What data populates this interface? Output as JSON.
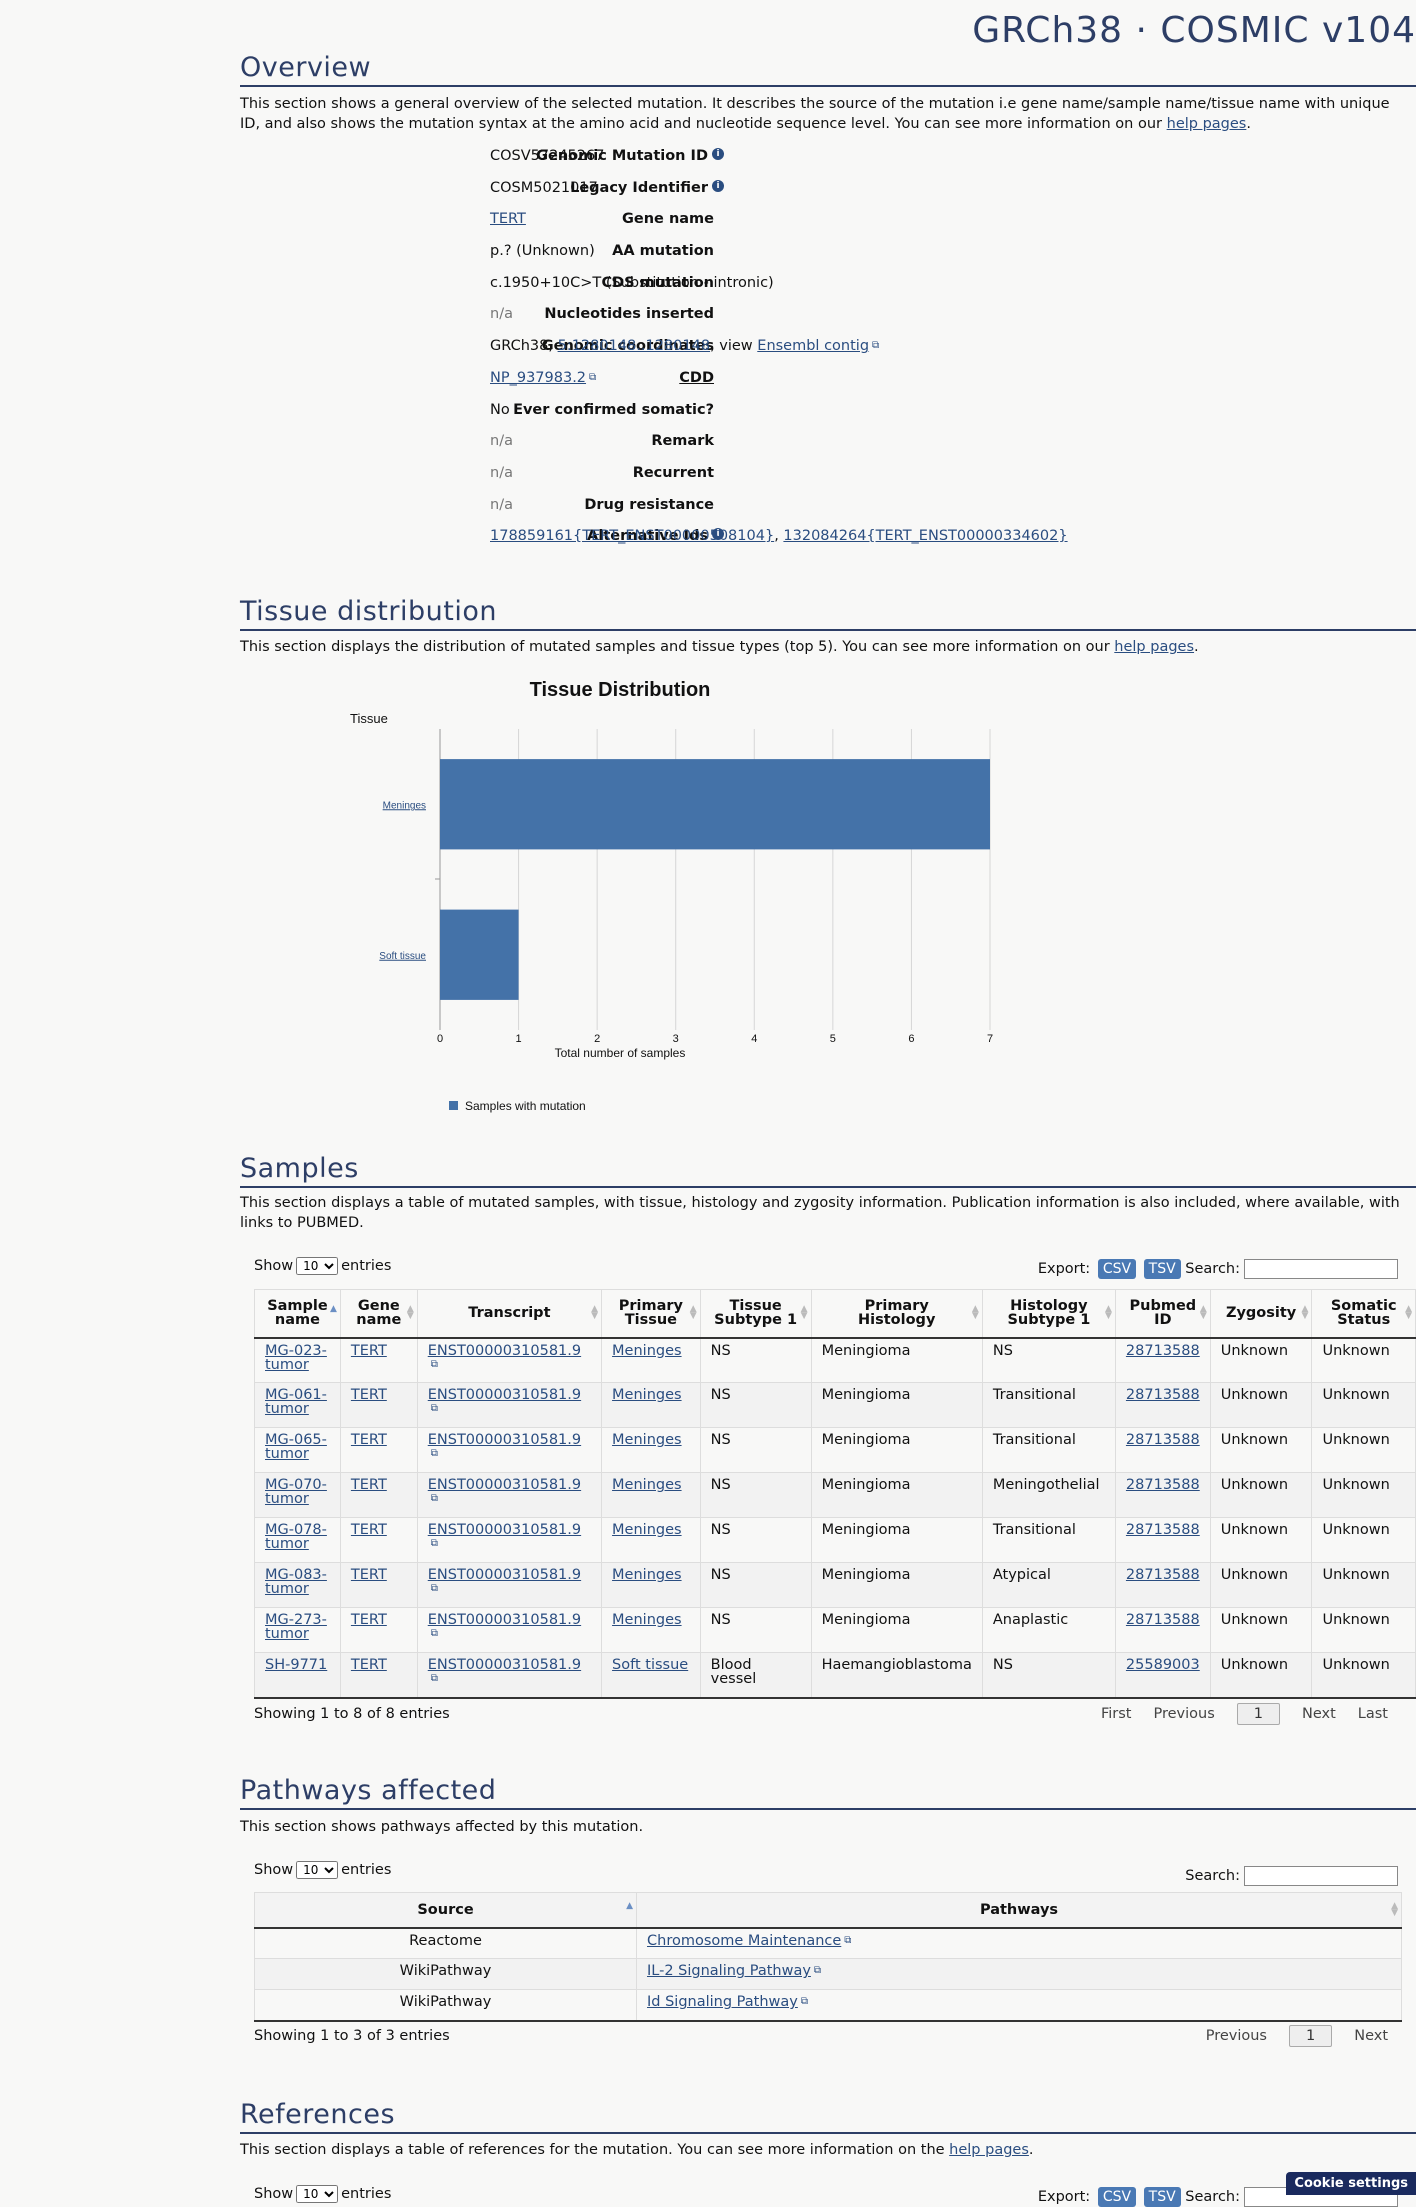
{
  "banner": "GRCh38 · COSMIC v104",
  "overview": {
    "title": "Overview",
    "desc_before": "This section shows a general overview of the selected mutation. It describes the source of the mutation i.e gene name/sample name/tissue name with unique ID, and also shows the mutation syntax at the amino acid and nucleotide sequence level. You can see more information on our ",
    "desc_link": "help pages",
    "desc_after": ".",
    "fields": {
      "genomic_mutation_id": {
        "label": "Genomic Mutation ID",
        "value": "COSV57245267"
      },
      "legacy_identifier": {
        "label": "Legacy Identifier",
        "value": "COSM5021017"
      },
      "gene_name": {
        "label": "Gene name",
        "value": "TERT"
      },
      "aa_mutation": {
        "label": "AA mutation",
        "value": "p.? (Unknown)"
      },
      "cds_mutation": {
        "label": "CDS mutation",
        "value": "c.1950+10C>T (Substitution - intronic)"
      },
      "nucleotides_inserted": {
        "label": "Nucleotides inserted",
        "value": "n/a"
      },
      "genomic_coordinates": {
        "label": "Genomic coordinates",
        "prefix": "GRCh38, ",
        "coord_link": "5:1280148..1280148",
        "mid": ", view ",
        "ensembl_link": "Ensembl contig"
      },
      "cdd": {
        "label": "CDD",
        "value": "NP_937983.2"
      },
      "ever_confirmed_somatic": {
        "label": "Ever confirmed somatic?",
        "value": "No"
      },
      "remark": {
        "label": "Remark",
        "value": "n/a"
      },
      "recurrent": {
        "label": "Recurrent",
        "value": "n/a"
      },
      "drug_resistance": {
        "label": "Drug resistance",
        "value": "n/a"
      },
      "alternative_ids": {
        "label": "Alternative Ids",
        "link1": "178859161{TERT_ENST00000508104}",
        "sep": ", ",
        "link2": "132084264{TERT_ENST00000334602}"
      }
    }
  },
  "tissue": {
    "title": "Tissue distribution",
    "desc_before": "This section displays the distribution of mutated samples and tissue types (top 5). You can see more information on our ",
    "desc_link": "help pages",
    "desc_after": "."
  },
  "chart_data": {
    "type": "bar",
    "orientation": "horizontal",
    "title": "Tissue Distribution",
    "ylabel": "Tissue",
    "xlabel": "Total number of samples",
    "categories": [
      "Meninges",
      "Soft tissue"
    ],
    "series": [
      {
        "name": "Samples with mutation",
        "values": [
          7,
          1
        ],
        "color": "#4472a8"
      }
    ],
    "xlim": [
      0,
      7
    ],
    "xticks": [
      "0",
      "1",
      "2",
      "3",
      "4",
      "5",
      "6",
      "7"
    ],
    "grid": true,
    "legend": "bottom"
  },
  "samples": {
    "title": "Samples",
    "desc": "This section displays a table of mutated samples, with tissue, histology and zygosity information. Publication information is also included, where available, with links to PUBMED.",
    "show": "Show",
    "entries": "entries",
    "page_size": "10",
    "export": "Export:",
    "csv": "CSV",
    "tsv": "TSV",
    "search": "Search:",
    "columns": [
      {
        "l1": "Sample",
        "l2": "name"
      },
      {
        "l1": "Gene",
        "l2": "name"
      },
      {
        "l1": "Transcript",
        "l2": ""
      },
      {
        "l1": "Primary",
        "l2": "Tissue"
      },
      {
        "l1": "Tissue",
        "l2": "Subtype 1"
      },
      {
        "l1": "Primary",
        "l2": "Histology"
      },
      {
        "l1": "Histology",
        "l2": "Subtype 1"
      },
      {
        "l1": "Pubmed",
        "l2": "ID"
      },
      {
        "l1": "Zygosity",
        "l2": ""
      },
      {
        "l1": "Somatic",
        "l2": "Status"
      }
    ],
    "rows": [
      {
        "s1": "MG-023-",
        "s2": "tumor",
        "gene": "TERT",
        "transcript": "ENST00000310581.9",
        "tissue": "Meninges",
        "subtype": "NS",
        "histology": "Meningioma",
        "hsub": "NS",
        "pubmed": "28713588",
        "zyg": "Unknown",
        "status": "Unknown"
      },
      {
        "s1": "MG-061-",
        "s2": "tumor",
        "gene": "TERT",
        "transcript": "ENST00000310581.9",
        "tissue": "Meninges",
        "subtype": "NS",
        "histology": "Meningioma",
        "hsub": "Transitional",
        "pubmed": "28713588",
        "zyg": "Unknown",
        "status": "Unknown"
      },
      {
        "s1": "MG-065-",
        "s2": "tumor",
        "gene": "TERT",
        "transcript": "ENST00000310581.9",
        "tissue": "Meninges",
        "subtype": "NS",
        "histology": "Meningioma",
        "hsub": "Transitional",
        "pubmed": "28713588",
        "zyg": "Unknown",
        "status": "Unknown"
      },
      {
        "s1": "MG-070-",
        "s2": "tumor",
        "gene": "TERT",
        "transcript": "ENST00000310581.9",
        "tissue": "Meninges",
        "subtype": "NS",
        "histology": "Meningioma",
        "hsub": "Meningothelial",
        "pubmed": "28713588",
        "zyg": "Unknown",
        "status": "Unknown"
      },
      {
        "s1": "MG-078-",
        "s2": "tumor",
        "gene": "TERT",
        "transcript": "ENST00000310581.9",
        "tissue": "Meninges",
        "subtype": "NS",
        "histology": "Meningioma",
        "hsub": "Transitional",
        "pubmed": "28713588",
        "zyg": "Unknown",
        "status": "Unknown"
      },
      {
        "s1": "MG-083-",
        "s2": "tumor",
        "gene": "TERT",
        "transcript": "ENST00000310581.9",
        "tissue": "Meninges",
        "subtype": "NS",
        "histology": "Meningioma",
        "hsub": "Atypical",
        "pubmed": "28713588",
        "zyg": "Unknown",
        "status": "Unknown"
      },
      {
        "s1": "MG-273-",
        "s2": "tumor",
        "gene": "TERT",
        "transcript": "ENST00000310581.9",
        "tissue": "Meninges",
        "subtype": "NS",
        "histology": "Meningioma",
        "hsub": "Anaplastic",
        "pubmed": "28713588",
        "zyg": "Unknown",
        "status": "Unknown"
      },
      {
        "s1": "SH-9771",
        "s2": "",
        "gene": "TERT",
        "transcript": "ENST00000310581.9",
        "tissue": "Soft tissue",
        "subtype": "Blood vessel",
        "histology": "Haemangioblastoma",
        "hsub": "NS",
        "pubmed": "25589003",
        "zyg": "Unknown",
        "status": "Unknown"
      }
    ],
    "info": "Showing 1 to 8 of 8 entries",
    "pager": {
      "first": "First",
      "previous": "Previous",
      "page": "1",
      "next": "Next",
      "last": "Last"
    }
  },
  "pathways": {
    "title": "Pathways affected",
    "desc": "This section shows pathways affected by this mutation.",
    "show": "Show",
    "entries": "entries",
    "page_size": "10",
    "search": "Search:",
    "columns": [
      "Source",
      "Pathways"
    ],
    "rows": [
      {
        "source": "Reactome",
        "pathway": "Chromosome Maintenance"
      },
      {
        "source": "WikiPathway",
        "pathway": "IL-2 Signaling Pathway"
      },
      {
        "source": "WikiPathway",
        "pathway": "Id Signaling Pathway"
      }
    ],
    "info": "Showing 1 to 3 of 3 entries",
    "pager": {
      "previous": "Previous",
      "page": "1",
      "next": "Next"
    }
  },
  "references": {
    "title": "References",
    "desc_before": "This section displays a table of references for the mutation. You can see more information on the ",
    "desc_link": "help pages",
    "desc_after": ".",
    "show": "Show",
    "entries": "entries",
    "page_size": "10",
    "export": "Export:",
    "csv": "CSV",
    "tsv": "TSV",
    "search": "Search:"
  },
  "cookie": "Cookie settings"
}
